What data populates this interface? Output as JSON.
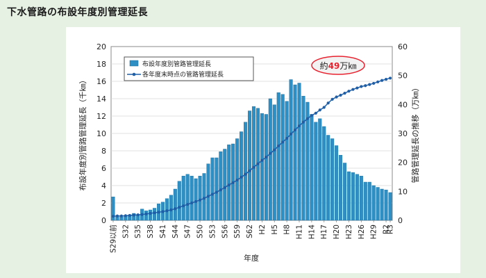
{
  "page": {
    "title": "下水管路の布設年度別管理延長"
  },
  "chart_data": {
    "type": "bar+line",
    "categories": [
      "S29以前",
      "S30",
      "S31",
      "S32",
      "S33",
      "S34",
      "S35",
      "S36",
      "S37",
      "S38",
      "S39",
      "S40",
      "S41",
      "S42",
      "S43",
      "S44",
      "S45",
      "S46",
      "S47",
      "S48",
      "S49",
      "S50",
      "S51",
      "S52",
      "S53",
      "S54",
      "S55",
      "S56",
      "S57",
      "S58",
      "S59",
      "S60",
      "S61",
      "S62",
      "S63",
      "H1",
      "H2",
      "H3",
      "H4",
      "H5",
      "H6",
      "H7",
      "H8",
      "H9",
      "H10",
      "H11",
      "H12",
      "H13",
      "H14",
      "H15",
      "H16",
      "H17",
      "H18",
      "H19",
      "H20",
      "H21",
      "H22",
      "H23",
      "H24",
      "H25",
      "H26",
      "H27",
      "H28",
      "H29",
      "H30",
      "R1",
      "R2",
      "R3"
    ],
    "x_tick_labels": [
      "S29以前",
      "S32",
      "S35",
      "S38",
      "S41",
      "S44",
      "S47",
      "S50",
      "S53",
      "S56",
      "S59",
      "S62",
      "H2",
      "H5",
      "H8",
      "H11",
      "H14",
      "H17",
      "H20",
      "H23",
      "H26",
      "H29",
      "R2",
      "R3"
    ],
    "series": [
      {
        "name": "布設年度別管路管理延長",
        "type": "bar",
        "axis": "left",
        "color": "#2e8fc4",
        "values": [
          2.7,
          0.4,
          0.4,
          0.5,
          0.6,
          0.8,
          0.6,
          1.3,
          1.1,
          1.2,
          1.4,
          1.9,
          2.1,
          2.5,
          2.9,
          3.6,
          4.5,
          5.1,
          5.3,
          5.1,
          4.8,
          5.1,
          5.4,
          6.5,
          7.2,
          7.2,
          7.9,
          8.2,
          8.7,
          8.8,
          9.4,
          10.2,
          11.3,
          12.6,
          13.1,
          12.9,
          12.3,
          12.2,
          14.0,
          13.3,
          14.7,
          14.5,
          13.7,
          16.2,
          15.6,
          15.8,
          14.3,
          13.6,
          12.2,
          11.3,
          11.7,
          10.8,
          9.8,
          9.4,
          8.6,
          7.5,
          6.6,
          5.6,
          5.5,
          5.3,
          5.1,
          4.4,
          4.4,
          4.0,
          3.8,
          3.6,
          3.5,
          3.2
        ]
      },
      {
        "name": "各年度末時点の管路管理延長",
        "type": "line",
        "axis": "right",
        "color": "#1f5fa8",
        "values": [
          1.4,
          1.5,
          1.5,
          1.6,
          1.7,
          1.8,
          1.9,
          2.0,
          2.2,
          2.4,
          2.6,
          2.8,
          3.0,
          3.3,
          3.6,
          4.0,
          4.5,
          5.0,
          5.5,
          6.0,
          6.5,
          7.0,
          7.6,
          8.3,
          9.0,
          9.7,
          10.5,
          11.3,
          12.2,
          13.0,
          13.9,
          14.9,
          15.9,
          17.1,
          18.3,
          19.5,
          20.7,
          21.8,
          23.1,
          24.3,
          25.7,
          27.0,
          28.3,
          29.8,
          31.2,
          32.6,
          33.9,
          35.1,
          36.2,
          37.0,
          38.1,
          39.0,
          40.5,
          41.8,
          42.6,
          43.2,
          43.9,
          44.6,
          45.2,
          45.7,
          46.2,
          46.5,
          46.9,
          47.3,
          47.8,
          48.3,
          48.7,
          49.1
        ]
      }
    ],
    "y_left": {
      "label": "布設年度別管路管理延長（千㎞）",
      "min": 0,
      "max": 20,
      "ticks": [
        "0",
        "2",
        "4",
        "6",
        "8",
        "10",
        "12",
        "14",
        "16",
        "18",
        "20"
      ]
    },
    "y_right": {
      "label": "管路管理延長の推移（万㎞）",
      "min": 0,
      "max": 60,
      "ticks": [
        "0",
        "10",
        "20",
        "30",
        "40",
        "50",
        "60"
      ]
    },
    "xlabel": "年度",
    "legend_position": "top-left",
    "annotation": {
      "prefix": "約",
      "value": "49",
      "suffix": "万㎞",
      "value_color": "#e8212e"
    }
  }
}
